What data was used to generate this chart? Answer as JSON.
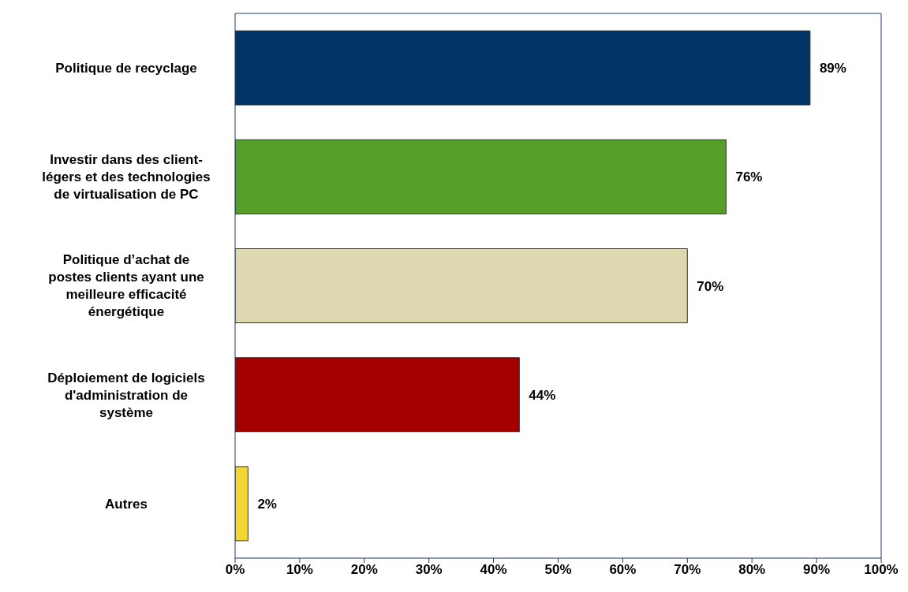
{
  "chart_data": {
    "type": "bar",
    "orientation": "horizontal",
    "categories": [
      "Politique de recyclage",
      "Investir dans des client-légers et des technologies de virtualisation de PC",
      "Politique d’achat de postes clients ayant une meilleure efficacité énergétique",
      "Déploiement de logiciels d'administration de système",
      "Autres"
    ],
    "values": [
      89,
      76,
      70,
      44,
      2
    ],
    "colors": [
      "#003366",
      "#559e27",
      "#ddd8b0",
      "#a50000",
      "#f5d530"
    ],
    "value_labels": [
      "89%",
      "76%",
      "70%",
      "44%",
      "2%"
    ],
    "xlim": [
      0,
      100
    ],
    "xticks": [
      {
        "value": 0,
        "label": "0%"
      },
      {
        "value": 10,
        "label": "10%"
      },
      {
        "value": 20,
        "label": "20%"
      },
      {
        "value": 30,
        "label": "30%"
      },
      {
        "value": 40,
        "label": "40%"
      },
      {
        "value": 50,
        "label": "50%"
      },
      {
        "value": 60,
        "label": "60%"
      },
      {
        "value": 70,
        "label": "70%"
      },
      {
        "value": 80,
        "label": "80%"
      },
      {
        "value": 90,
        "label": "90%"
      },
      {
        "value": 100,
        "label": "100%"
      }
    ],
    "grid": false,
    "legend": false
  }
}
